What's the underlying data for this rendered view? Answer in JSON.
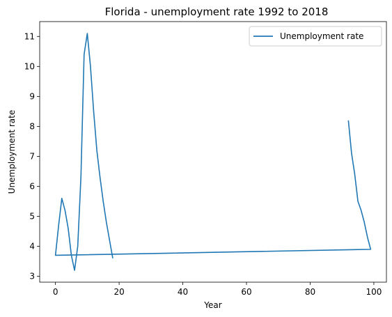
{
  "chart_data": {
    "type": "line",
    "title": "Florida - unemployment rate 1992 to 2018",
    "xlabel": "Year",
    "ylabel": "Unemployment rate",
    "xlim": [
      -4.95,
      103.95
    ],
    "ylim": [
      2.805,
      11.495
    ],
    "xticks": [
      0,
      20,
      40,
      60,
      80,
      100
    ],
    "yticks": [
      3,
      4,
      5,
      6,
      7,
      8,
      9,
      10,
      11
    ],
    "grid": false,
    "legend_position": "top-right",
    "series": [
      {
        "name": "Unemployment rate",
        "color": "#1f77b4",
        "x": [
          92,
          93,
          94,
          95,
          96,
          97,
          98,
          99,
          0,
          1,
          2,
          3,
          4,
          5,
          6,
          7,
          8,
          9,
          10,
          11,
          12,
          13,
          14,
          15,
          16,
          17,
          18
        ],
        "y": [
          8.2,
          7.1,
          6.4,
          5.5,
          5.2,
          4.8,
          4.3,
          3.9,
          3.7,
          4.7,
          5.6,
          5.2,
          4.6,
          3.7,
          3.2,
          4.0,
          6.3,
          10.4,
          11.1,
          10.0,
          8.5,
          7.2,
          6.3,
          5.5,
          4.8,
          4.2,
          3.6
        ]
      }
    ]
  }
}
